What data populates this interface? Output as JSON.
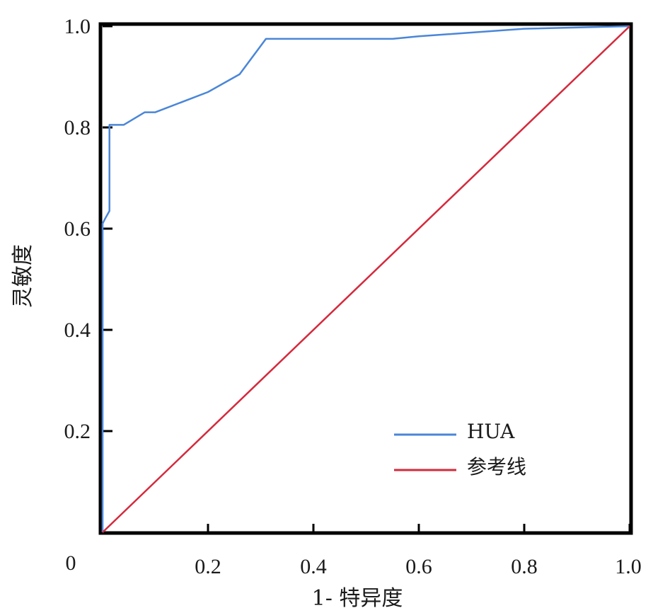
{
  "chart_data": {
    "type": "line",
    "xlabel": "1- 特异度",
    "ylabel": "灵敏度",
    "xlim": [
      0,
      1.0
    ],
    "ylim": [
      0,
      1.0
    ],
    "origin_label": "0",
    "x_ticks": [
      {
        "value": 0.2,
        "label": "0.2"
      },
      {
        "value": 0.4,
        "label": "0.4"
      },
      {
        "value": 0.6,
        "label": "0.6"
      },
      {
        "value": 0.8,
        "label": "0.8"
      },
      {
        "value": 1.0,
        "label": "1.0"
      }
    ],
    "y_ticks": [
      {
        "value": 0.2,
        "label": "0.2"
      },
      {
        "value": 0.4,
        "label": "0.4"
      },
      {
        "value": 0.6,
        "label": "0.6"
      },
      {
        "value": 0.8,
        "label": "0.8"
      },
      {
        "value": 1.0,
        "label": "1.0"
      }
    ],
    "grid": false,
    "legend_position": "bottom-right",
    "series": [
      {
        "name": "HUA",
        "color": "#4a86d8",
        "x": [
          0.0,
          0.0,
          0.005,
          0.013,
          0.013,
          0.02,
          0.04,
          0.08,
          0.1,
          0.2,
          0.26,
          0.31,
          0.4,
          0.55,
          0.6,
          0.8,
          1.0
        ],
        "y": [
          0.0,
          0.61,
          0.62,
          0.635,
          0.805,
          0.805,
          0.805,
          0.83,
          0.83,
          0.87,
          0.905,
          0.975,
          0.975,
          0.975,
          0.98,
          0.995,
          1.0
        ]
      },
      {
        "name": "参考线",
        "color": "#d42a3c",
        "x": [
          0,
          1.0
        ],
        "y": [
          0,
          1.0
        ]
      }
    ]
  }
}
